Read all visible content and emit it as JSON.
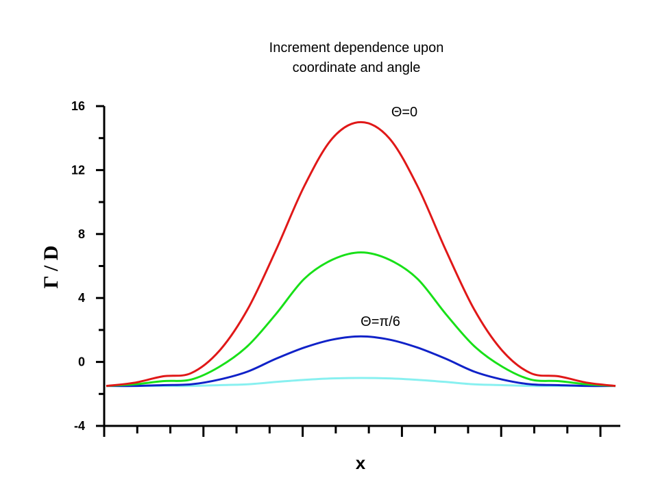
{
  "chart_data": {
    "type": "line",
    "title_lines": [
      "Increment dependence upon",
      "coordinate and angle"
    ],
    "xlabel": "x",
    "ylabel": "Γ / D",
    "ylim": [
      -4,
      16
    ],
    "y_ticks": [
      -4,
      0,
      4,
      8,
      12,
      16
    ],
    "y_tick_labels": [
      "-4",
      "0",
      "4",
      "8",
      "12",
      "16"
    ],
    "x_tick_labels": [],
    "grid": false,
    "annotations": [
      {
        "text": "Θ=0",
        "series": 0
      },
      {
        "text": "Θ=π/6",
        "series": 2
      }
    ],
    "series": [
      {
        "color": "#e01818",
        "values": [
          -1.5,
          -1.3,
          -0.9,
          -0.7,
          0.7,
          3.3,
          7.0,
          11.0,
          14.0,
          15.0,
          14.0,
          11.0,
          7.0,
          3.3,
          0.7,
          -0.7,
          -0.9,
          -1.3,
          -1.5
        ]
      },
      {
        "color": "#18e018",
        "values": [
          -1.5,
          -1.4,
          -1.2,
          -1.1,
          -0.3,
          1.0,
          3.0,
          5.2,
          6.4,
          6.85,
          6.4,
          5.2,
          3.0,
          1.0,
          -0.3,
          -1.1,
          -1.2,
          -1.4,
          -1.5
        ]
      },
      {
        "color": "#1022c8",
        "values": [
          -1.5,
          -1.5,
          -1.45,
          -1.4,
          -1.1,
          -0.6,
          0.2,
          0.9,
          1.4,
          1.6,
          1.4,
          0.9,
          0.2,
          -0.6,
          -1.1,
          -1.4,
          -1.45,
          -1.5,
          -1.5
        ]
      },
      {
        "color": "#88f0f0",
        "values": [
          -1.5,
          -1.5,
          -1.5,
          -1.5,
          -1.45,
          -1.4,
          -1.25,
          -1.12,
          -1.03,
          -1.0,
          -1.03,
          -1.12,
          -1.25,
          -1.4,
          -1.45,
          -1.5,
          -1.5,
          -1.5,
          -1.5
        ]
      }
    ],
    "x_points": 19
  }
}
